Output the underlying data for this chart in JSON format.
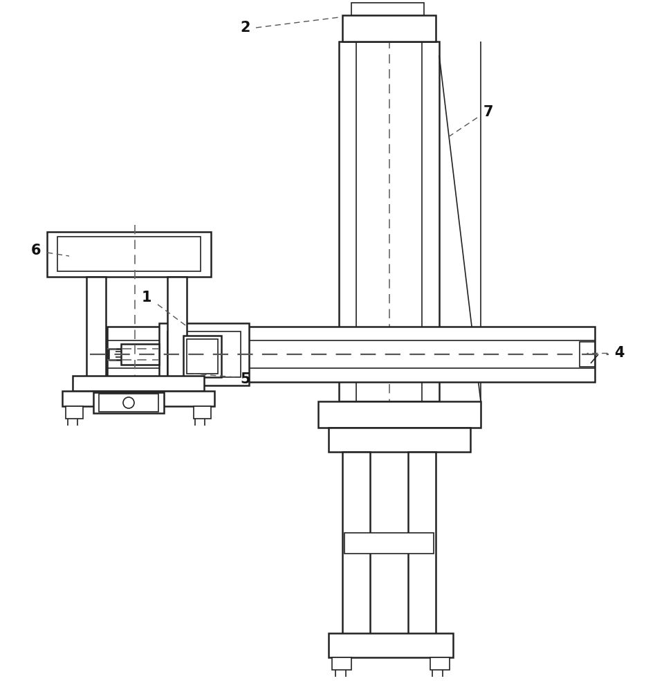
{
  "bg_color": "#ffffff",
  "line_color": "#222222",
  "lw_main": 1.8,
  "lw_inner": 1.2,
  "lw_dash": 1.2,
  "figsize": [
    9.6,
    10.0
  ],
  "dpi": 100
}
